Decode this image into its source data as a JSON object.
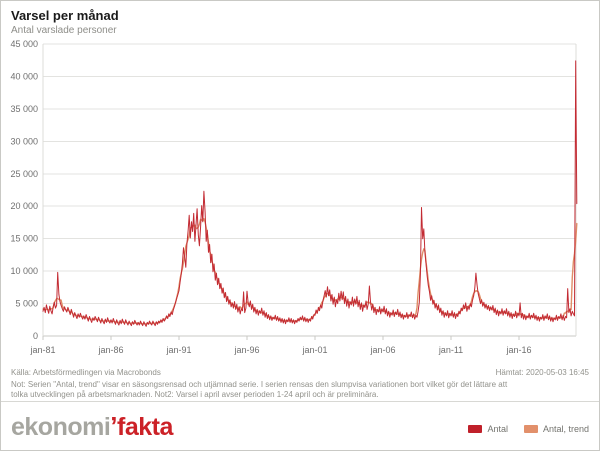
{
  "header": {
    "title": "Varsel per månad",
    "subtitle": "Antal varslade personer"
  },
  "footer": {
    "source": "Källa: Arbetsförmedlingen via Macrobonds",
    "retrieved": "Hämtat: 2020-05-03 16:45",
    "note_line1": "Not: Serien \"Antal, trend\" visar en säsongsrensad och utjämnad serie. I serien rensas den slumpvisa variationen bort vilket gör det lättare att",
    "note_line2": "tolka utvecklingen på arbetsmarknaden. Not2: Varsel i april avser perioden 1-24 april och är preliminära."
  },
  "logo": {
    "part1": "ekonomi",
    "accent": "’",
    "part2": "fakta"
  },
  "legend": [
    {
      "label": "Antal",
      "color": "#c0202a"
    },
    {
      "label": "Antal, trend",
      "color": "#e2906b"
    }
  ],
  "chart_data": {
    "type": "line",
    "title": "Varsel per månad",
    "subtitle": "Antal varslade personer",
    "x_start": "jan-1981",
    "x_end": "apr-2020",
    "x_unit": "month",
    "ylim": [
      0,
      45000
    ],
    "grid": "horizontal",
    "legend_position": "bottom-right",
    "y_ticks": [
      {
        "value": 0,
        "label": "0"
      },
      {
        "value": 5000,
        "label": "5 000"
      },
      {
        "value": 10000,
        "label": "10 000"
      },
      {
        "value": 15000,
        "label": "15 000"
      },
      {
        "value": 20000,
        "label": "20 000"
      },
      {
        "value": 25000,
        "label": "25 000"
      },
      {
        "value": 30000,
        "label": "30 000"
      },
      {
        "value": 35000,
        "label": "35 000"
      },
      {
        "value": 40000,
        "label": "40 000"
      },
      {
        "value": 45000,
        "label": "45 000"
      }
    ],
    "x_ticks": [
      {
        "month": 0,
        "label": "jan-81"
      },
      {
        "month": 60,
        "label": "jan-86"
      },
      {
        "month": 120,
        "label": "jan-91"
      },
      {
        "month": 180,
        "label": "jan-96"
      },
      {
        "month": 240,
        "label": "jan-01"
      },
      {
        "month": 300,
        "label": "jan-06"
      },
      {
        "month": 360,
        "label": "jan-11"
      },
      {
        "month": 420,
        "label": "jan-16"
      }
    ],
    "series": [
      {
        "name": "Antal",
        "color": "#c32b33",
        "values": [
          3800,
          4400,
          3600,
          4800,
          4100,
          3500,
          4600,
          3900,
          3400,
          4500,
          5200,
          4300,
          4700,
          9800,
          6400,
          5300,
          4700,
          4200,
          3800,
          4500,
          4000,
          3700,
          4400,
          3900,
          3300,
          4100,
          3500,
          2900,
          3600,
          3100,
          2700,
          3400,
          2900,
          3500,
          3000,
          2600,
          3100,
          2600,
          3300,
          2800,
          2300,
          3000,
          2500,
          2100,
          2800,
          2400,
          3000,
          2600,
          2200,
          2900,
          2400,
          2000,
          2700,
          2200,
          1900,
          2600,
          2100,
          2800,
          2300,
          2000,
          2500,
          2000,
          2700,
          2200,
          1800,
          2500,
          2000,
          1700,
          2400,
          1900,
          2600,
          2100,
          1800,
          2500,
          2000,
          1700,
          2300,
          1900,
          1600,
          2200,
          1800,
          2400,
          2000,
          1700,
          2100,
          1700,
          2300,
          1900,
          1600,
          2200,
          1800,
          1500,
          2100,
          1800,
          2300,
          1900,
          1700,
          2300,
          1900,
          1600,
          2200,
          1800,
          2300,
          2000,
          2500,
          2100,
          2700,
          2300,
          2600,
          3100,
          2700,
          3400,
          3000,
          3700,
          3300,
          4000,
          4600,
          5200,
          5800,
          6400,
          7000,
          8300,
          9600,
          11200,
          13600,
          12100,
          10600,
          14200,
          16200,
          18600,
          15100,
          17600,
          16100,
          18900,
          14600,
          17100,
          19600,
          15600,
          13900,
          16600,
          20100,
          17600,
          22300,
          19100,
          14600,
          16300,
          12900,
          14100,
          11300,
          12600,
          9900,
          11100,
          8600,
          9700,
          7900,
          8900,
          7300,
          8100,
          6600,
          7400,
          5900,
          6700,
          5300,
          6100,
          4900,
          5600,
          4500,
          5100,
          4300,
          5300,
          4100,
          4900,
          3700,
          4500,
          3400,
          4200,
          3900,
          6800,
          3600,
          4300,
          6900,
          5200,
          4500,
          5400,
          4100,
          4900,
          3700,
          4400,
          3400,
          4100,
          3200,
          3900,
          3500,
          4300,
          3200,
          3900,
          2900,
          3600,
          2700,
          3300,
          2500,
          3100,
          2400,
          2900,
          2600,
          3200,
          2400,
          3000,
          2300,
          2800,
          2100,
          2700,
          2000,
          2600,
          1900,
          2500,
          2200,
          2800,
          2100,
          2700,
          2000,
          2500,
          1900,
          2400,
          2100,
          2700,
          2300,
          2900,
          2500,
          3100,
          2300,
          2900,
          2200,
          2700,
          2100,
          2600,
          2300,
          3000,
          2600,
          3300,
          3200,
          4000,
          3500,
          4400,
          3900,
          4800,
          4300,
          5400,
          6200,
          7000,
          6000,
          7600,
          6200,
          7100,
          5400,
          6400,
          4900,
          6000,
          4500,
          5600,
          5000,
          6600,
          5400,
          6900,
          5600,
          6800,
          5000,
          6100,
          4600,
          5700,
          4300,
          5300,
          4800,
          6000,
          4600,
          5700,
          4900,
          6100,
          4500,
          5500,
          4100,
          5100,
          3800,
          4800,
          4400,
          5400,
          4100,
          5000,
          7700,
          5300,
          4000,
          4900,
          3600,
          4400,
          3300,
          4100,
          3700,
          4500,
          3400,
          4200,
          3700,
          4600,
          3400,
          4200,
          3100,
          3800,
          2900,
          3600,
          3200,
          4000,
          3000,
          3700,
          3300,
          4100,
          3000,
          3700,
          2800,
          3400,
          2600,
          3200,
          2900,
          3600,
          2700,
          3300,
          3000,
          3700,
          2800,
          3400,
          2600,
          3200,
          2900,
          3800,
          5200,
          9500,
          19800,
          15000,
          16500,
          13000,
          11000,
          9200,
          7800,
          6800,
          5500,
          6200,
          4900,
          5500,
          4300,
          5000,
          4000,
          4800,
          3600,
          4300,
          3200,
          3900,
          2900,
          3600,
          3100,
          3900,
          2800,
          3500,
          3100,
          3900,
          2900,
          3600,
          2700,
          3400,
          3000,
          3800,
          3400,
          4300,
          3900,
          4800,
          4200,
          5100,
          3800,
          4600,
          4100,
          5000,
          4500,
          5500,
          6200,
          7400,
          9700,
          7800,
          6500,
          5800,
          5000,
          5600,
          4600,
          5200,
          4300,
          4900,
          4100,
          4700,
          3900,
          4500,
          4000,
          4700,
          3600,
          4300,
          3300,
          4000,
          3100,
          3800,
          3400,
          4200,
          3200,
          3900,
          3400,
          4200,
          3100,
          3800,
          2900,
          3600,
          2700,
          3400,
          3000,
          3800,
          2800,
          3500,
          3100,
          5100,
          2800,
          3500,
          2600,
          3300,
          2500,
          3100,
          2800,
          3500,
          2600,
          3200,
          2800,
          3500,
          2600,
          3200,
          2400,
          3000,
          2300,
          2900,
          2600,
          3300,
          2400,
          3100,
          2700,
          3400,
          2500,
          3100,
          2300,
          2900,
          2200,
          2800,
          2500,
          3200,
          2400,
          3000,
          2700,
          3400,
          2500,
          3200,
          2400,
          3000,
          2800,
          7300,
          3600,
          4200,
          3100,
          3800,
          3400,
          3100,
          42400,
          20400
        ]
      },
      {
        "name": "Antal, trend",
        "color": "#df8d67",
        "derived": "centered moving average (window 7) of series Antal"
      }
    ]
  }
}
